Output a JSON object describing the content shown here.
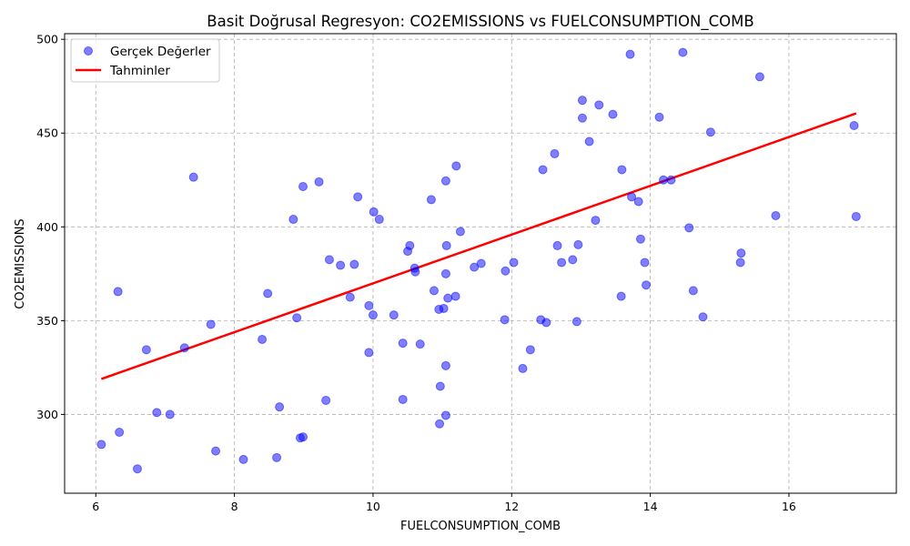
{
  "chart_data": {
    "type": "scatter",
    "title": "Basit Doğrusal Regresyon: CO2EMISSIONS vs FUELCONSUMPTION_COMB",
    "xlabel": "FUELCONSUMPTION_COMB",
    "ylabel": "CO2EMISSIONS",
    "xlim": [
      5.55,
      17.55
    ],
    "ylim": [
      258,
      503
    ],
    "xticks": [
      6,
      8,
      10,
      12,
      14,
      16
    ],
    "yticks": [
      300,
      350,
      400,
      450,
      500
    ],
    "grid": true,
    "legend_position": "upper-left",
    "series": [
      {
        "name": "Gerçek Değerler",
        "type": "scatter",
        "color": "#0000ff",
        "points": [
          [
            6.08,
            284
          ],
          [
            6.32,
            365.5
          ],
          [
            6.34,
            290.5
          ],
          [
            6.6,
            271
          ],
          [
            6.73,
            334.5
          ],
          [
            6.88,
            301
          ],
          [
            7.07,
            300
          ],
          [
            7.28,
            335.5
          ],
          [
            7.41,
            426.5
          ],
          [
            7.66,
            348
          ],
          [
            7.73,
            280.5
          ],
          [
            8.13,
            276
          ],
          [
            8.4,
            340
          ],
          [
            8.48,
            364.5
          ],
          [
            8.61,
            277
          ],
          [
            8.65,
            304
          ],
          [
            8.85,
            404
          ],
          [
            8.9,
            351.5
          ],
          [
            8.95,
            287.5
          ],
          [
            8.99,
            288
          ],
          [
            8.99,
            421.5
          ],
          [
            9.22,
            424
          ],
          [
            9.32,
            307.5
          ],
          [
            9.37,
            382.5
          ],
          [
            9.53,
            379.5
          ],
          [
            9.73,
            380
          ],
          [
            9.78,
            416
          ],
          [
            9.67,
            362.5
          ],
          [
            9.94,
            358
          ],
          [
            9.94,
            333
          ],
          [
            10.0,
            353
          ],
          [
            10.01,
            408
          ],
          [
            10.09,
            404
          ],
          [
            10.3,
            353
          ],
          [
            10.43,
            338
          ],
          [
            10.43,
            308
          ],
          [
            10.5,
            387
          ],
          [
            10.53,
            390
          ],
          [
            10.6,
            378
          ],
          [
            10.61,
            376
          ],
          [
            10.68,
            337.5
          ],
          [
            10.84,
            414.5
          ],
          [
            10.88,
            366
          ],
          [
            10.95,
            356
          ],
          [
            10.97,
            315
          ],
          [
            10.96,
            295
          ],
          [
            11.02,
            356.5
          ],
          [
            11.05,
            299.5
          ],
          [
            11.05,
            375
          ],
          [
            11.06,
            390
          ],
          [
            11.05,
            424.5
          ],
          [
            11.05,
            326
          ],
          [
            11.08,
            362
          ],
          [
            11.19,
            363
          ],
          [
            11.2,
            432.5
          ],
          [
            11.26,
            397.5
          ],
          [
            11.46,
            378.5
          ],
          [
            11.56,
            380.5
          ],
          [
            11.9,
            350.5
          ],
          [
            11.91,
            376.5
          ],
          [
            12.03,
            381
          ],
          [
            12.16,
            324.5
          ],
          [
            12.27,
            334.5
          ],
          [
            12.42,
            350.5
          ],
          [
            12.45,
            430.5
          ],
          [
            12.5,
            349
          ],
          [
            12.62,
            439
          ],
          [
            12.66,
            390
          ],
          [
            12.72,
            381
          ],
          [
            12.88,
            382.5
          ],
          [
            12.94,
            349.5
          ],
          [
            12.96,
            390.5
          ],
          [
            13.02,
            467.5
          ],
          [
            13.02,
            458
          ],
          [
            13.12,
            445.5
          ],
          [
            13.21,
            403.5
          ],
          [
            13.26,
            465
          ],
          [
            13.46,
            460
          ],
          [
            13.58,
            363
          ],
          [
            13.59,
            430.5
          ],
          [
            13.71,
            492
          ],
          [
            13.73,
            416
          ],
          [
            13.83,
            413.5
          ],
          [
            13.86,
            393.5
          ],
          [
            13.92,
            381
          ],
          [
            13.94,
            369
          ],
          [
            14.13,
            458.5
          ],
          [
            14.19,
            425
          ],
          [
            14.3,
            425
          ],
          [
            14.47,
            493
          ],
          [
            14.56,
            399.5
          ],
          [
            14.62,
            366
          ],
          [
            14.76,
            352
          ],
          [
            14.87,
            450.5
          ],
          [
            15.3,
            381
          ],
          [
            15.31,
            386
          ],
          [
            15.58,
            480
          ],
          [
            15.81,
            406
          ],
          [
            16.94,
            454
          ],
          [
            16.97,
            405.5
          ]
        ]
      },
      {
        "name": "Tahminler",
        "type": "line",
        "color": "#ff0000",
        "x": [
          6.08,
          16.97
        ],
        "y": [
          318.9,
          460.5
        ]
      }
    ]
  }
}
